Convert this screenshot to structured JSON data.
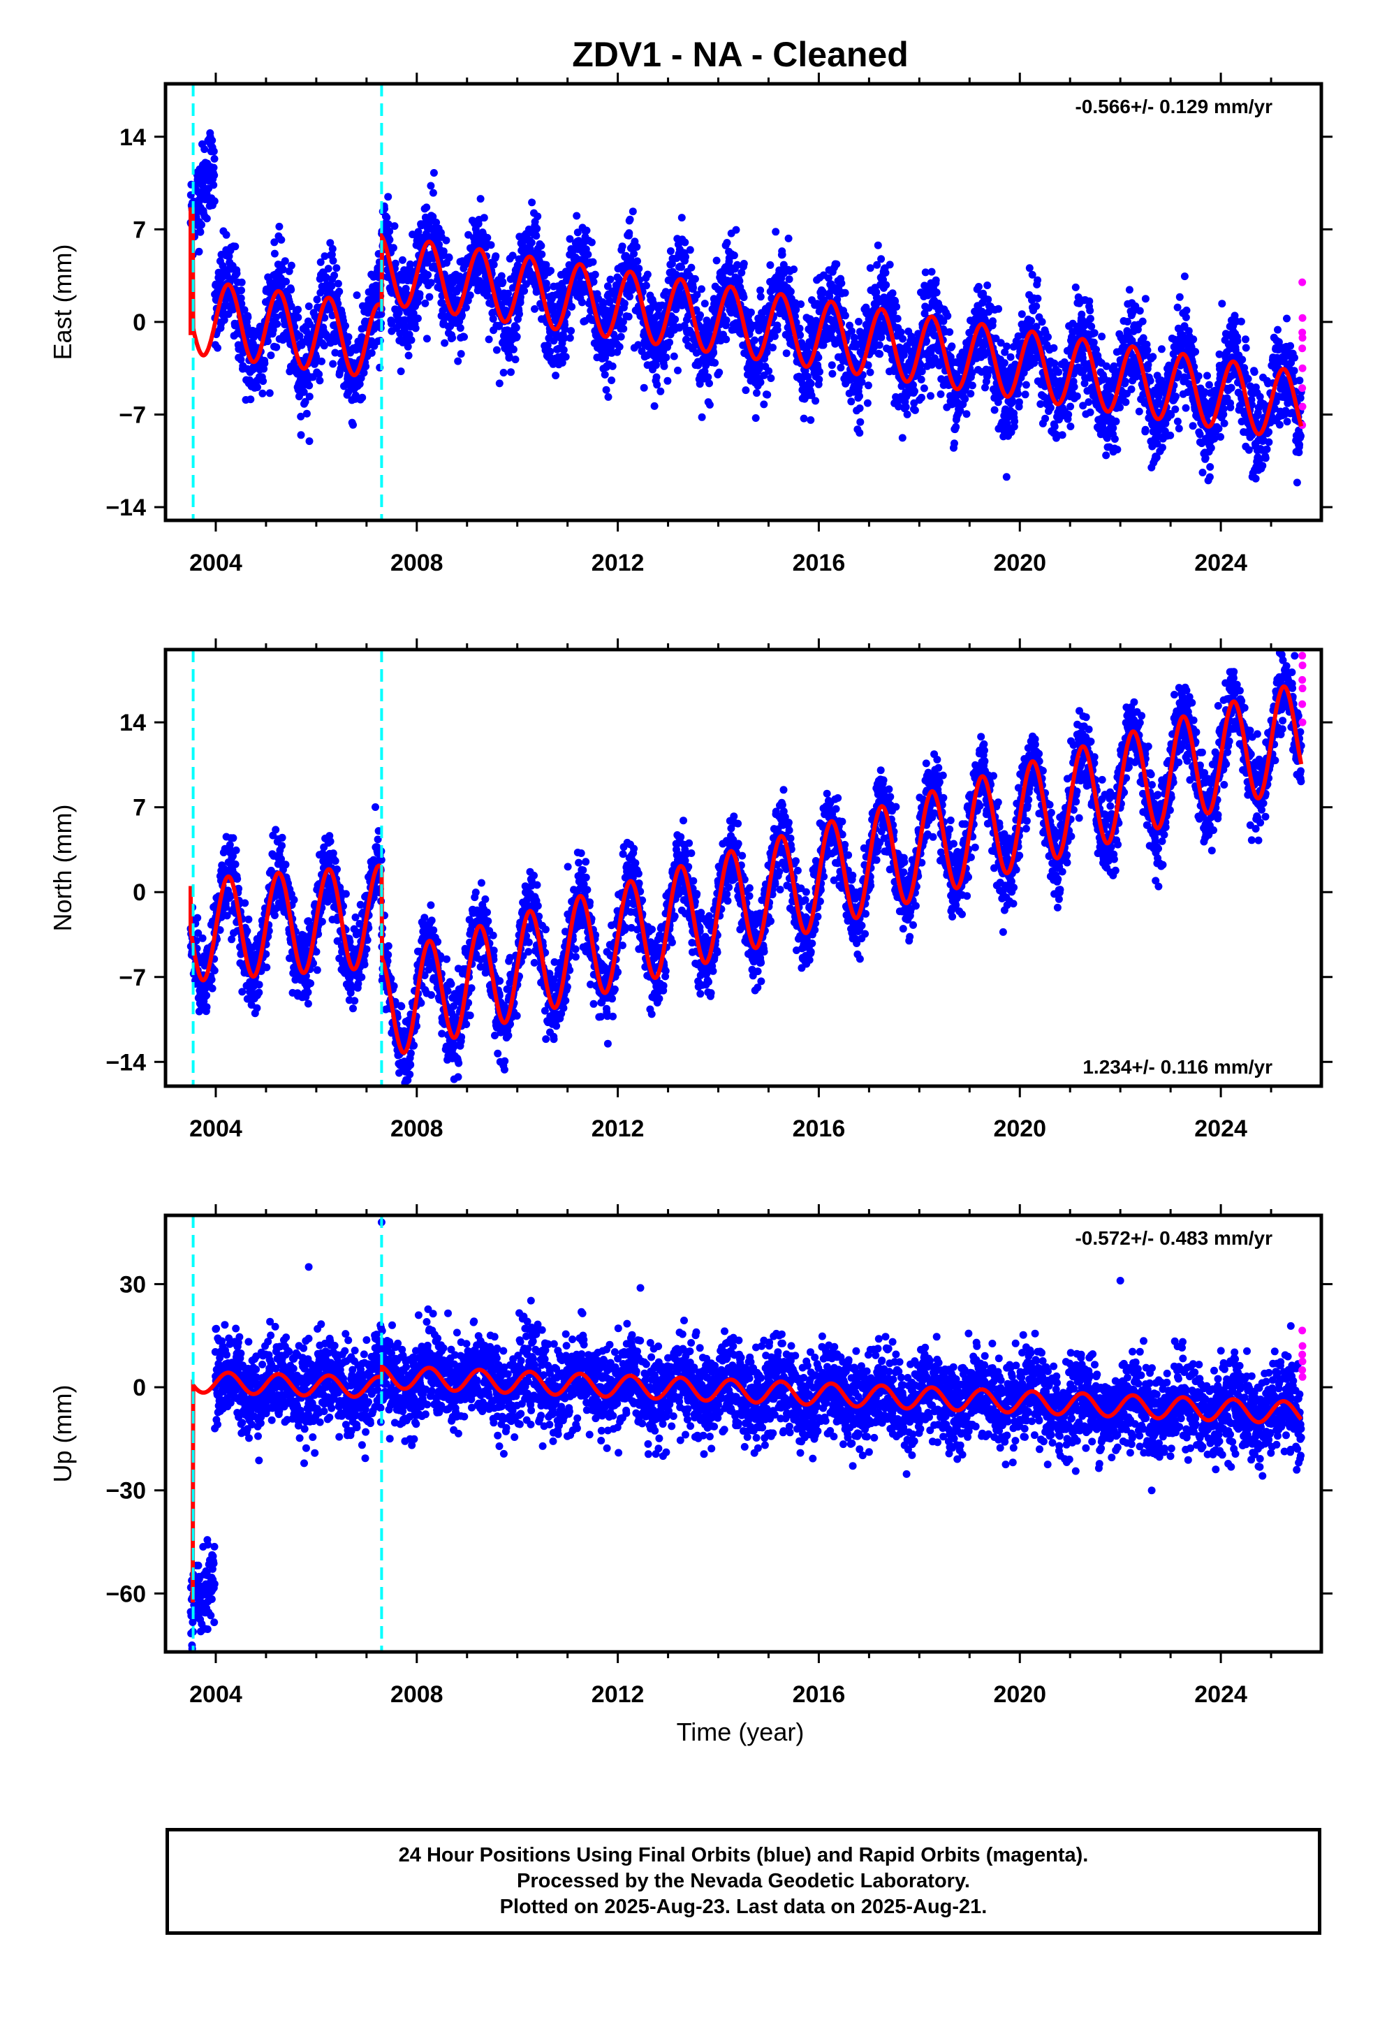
{
  "title": "ZDV1  - NA - Cleaned",
  "xlabel": "Time (year)",
  "footer": {
    "line1": "24 Hour Positions Using Final Orbits (blue) and Rapid Orbits (magenta).",
    "line2": "Processed by the Nevada Geodetic Laboratory.",
    "line3": "Plotted on 2025-Aug-23. Last data on 2025-Aug-21."
  },
  "colors": {
    "final_orbits": "#0000ff",
    "rapid_orbits": "#ff00ff",
    "model_fit": "#ff0000",
    "equipment_change": "#00ffff",
    "axes": "#000000"
  },
  "chart_data": [
    {
      "type": "scatter",
      "component": "East",
      "ylabel": "East (mm)",
      "rate_label": "-0.566+/- 0.129 mm/yr",
      "rate_position": "top-right",
      "xlim": [
        2003.0,
        2026.0
      ],
      "ylim": [
        -15,
        18
      ],
      "xticks": [
        2004,
        2008,
        2012,
        2016,
        2020,
        2024
      ],
      "yticks": [
        -14,
        -7,
        0,
        7,
        14
      ],
      "grid": false,
      "equipment_changes": [
        2003.55,
        2007.3
      ],
      "segments": [
        {
          "start": 2003.5,
          "end": 2003.55,
          "offset": 8.5,
          "amp": 0,
          "linear": 0
        },
        {
          "start": 2003.55,
          "end": 2007.3,
          "offset": -1.5,
          "amp": 2.8,
          "linear": -0.5
        },
        {
          "start": 2007.3,
          "end": 2025.65,
          "offset": 4.0,
          "amp": 2.6,
          "linear": -0.566
        }
      ],
      "early_cluster": {
        "start": 2003.5,
        "end": 2003.98,
        "from": 8.0,
        "to": 12.5
      },
      "noise_mm": 1.8,
      "rapid_points": [
        3.0,
        0.3,
        -0.8,
        -1.2,
        -2.0,
        -3.5,
        -5.0,
        -6.4,
        -7.8
      ],
      "fit_y_start": -1.0
    },
    {
      "type": "scatter",
      "component": "North",
      "ylabel": "North (mm)",
      "rate_label": "1.234+/- 0.116 mm/yr",
      "rate_position": "bottom-right",
      "xlim": [
        2003.0,
        2026.0
      ],
      "ylim": [
        -16,
        20
      ],
      "xticks": [
        2004,
        2008,
        2012,
        2016,
        2020,
        2024
      ],
      "yticks": [
        -14,
        -7,
        0,
        7,
        14
      ],
      "grid": false,
      "equipment_changes": [
        2003.55,
        2007.3
      ],
      "segments": [
        {
          "start": 2003.5,
          "end": 2007.3,
          "offset": -2.0,
          "amp": 4.2,
          "linear": 0.3
        },
        {
          "start": 2007.3,
          "end": 2025.65,
          "offset": -9.5,
          "amp": 4.3,
          "linear": 1.234
        }
      ],
      "noise_mm": 1.6,
      "rapid_points": [
        19.5,
        18.7,
        17.5,
        16.8,
        15.5,
        14.0
      ],
      "fit_y_start": 0.5
    },
    {
      "type": "scatter",
      "component": "Up",
      "ylabel": "Up (mm)",
      "rate_label": "-0.572+/- 0.483 mm/yr",
      "rate_position": "top-right",
      "xlim": [
        2003.0,
        2026.0
      ],
      "ylim": [
        -77,
        50
      ],
      "xticks": [
        2004,
        2008,
        2012,
        2016,
        2020,
        2024
      ],
      "yticks": [
        -60,
        -30,
        0,
        30
      ],
      "grid": false,
      "equipment_changes": [
        2003.55,
        2007.3
      ],
      "segments": [
        {
          "start": 2003.5,
          "end": 2003.55,
          "offset": -62,
          "amp": 0,
          "linear": 0
        },
        {
          "start": 2003.55,
          "end": 2007.3,
          "offset": 0,
          "amp": 3.0,
          "linear": -0.4
        },
        {
          "start": 2007.3,
          "end": 2025.65,
          "offset": 3.0,
          "amp": 3.2,
          "linear": -0.572
        }
      ],
      "early_cluster": {
        "start": 2003.5,
        "end": 2003.98,
        "from": -66,
        "to": -55
      },
      "noise_mm": 6.5,
      "outliers": [
        [
          2007.3,
          48
        ],
        [
          2022.0,
          31
        ],
        [
          2005.85,
          35
        ]
      ],
      "rapid_points": [
        16.5,
        12.0,
        9.5,
        7.5,
        5.0,
        3.0
      ],
      "fit_y_start": -62
    }
  ]
}
